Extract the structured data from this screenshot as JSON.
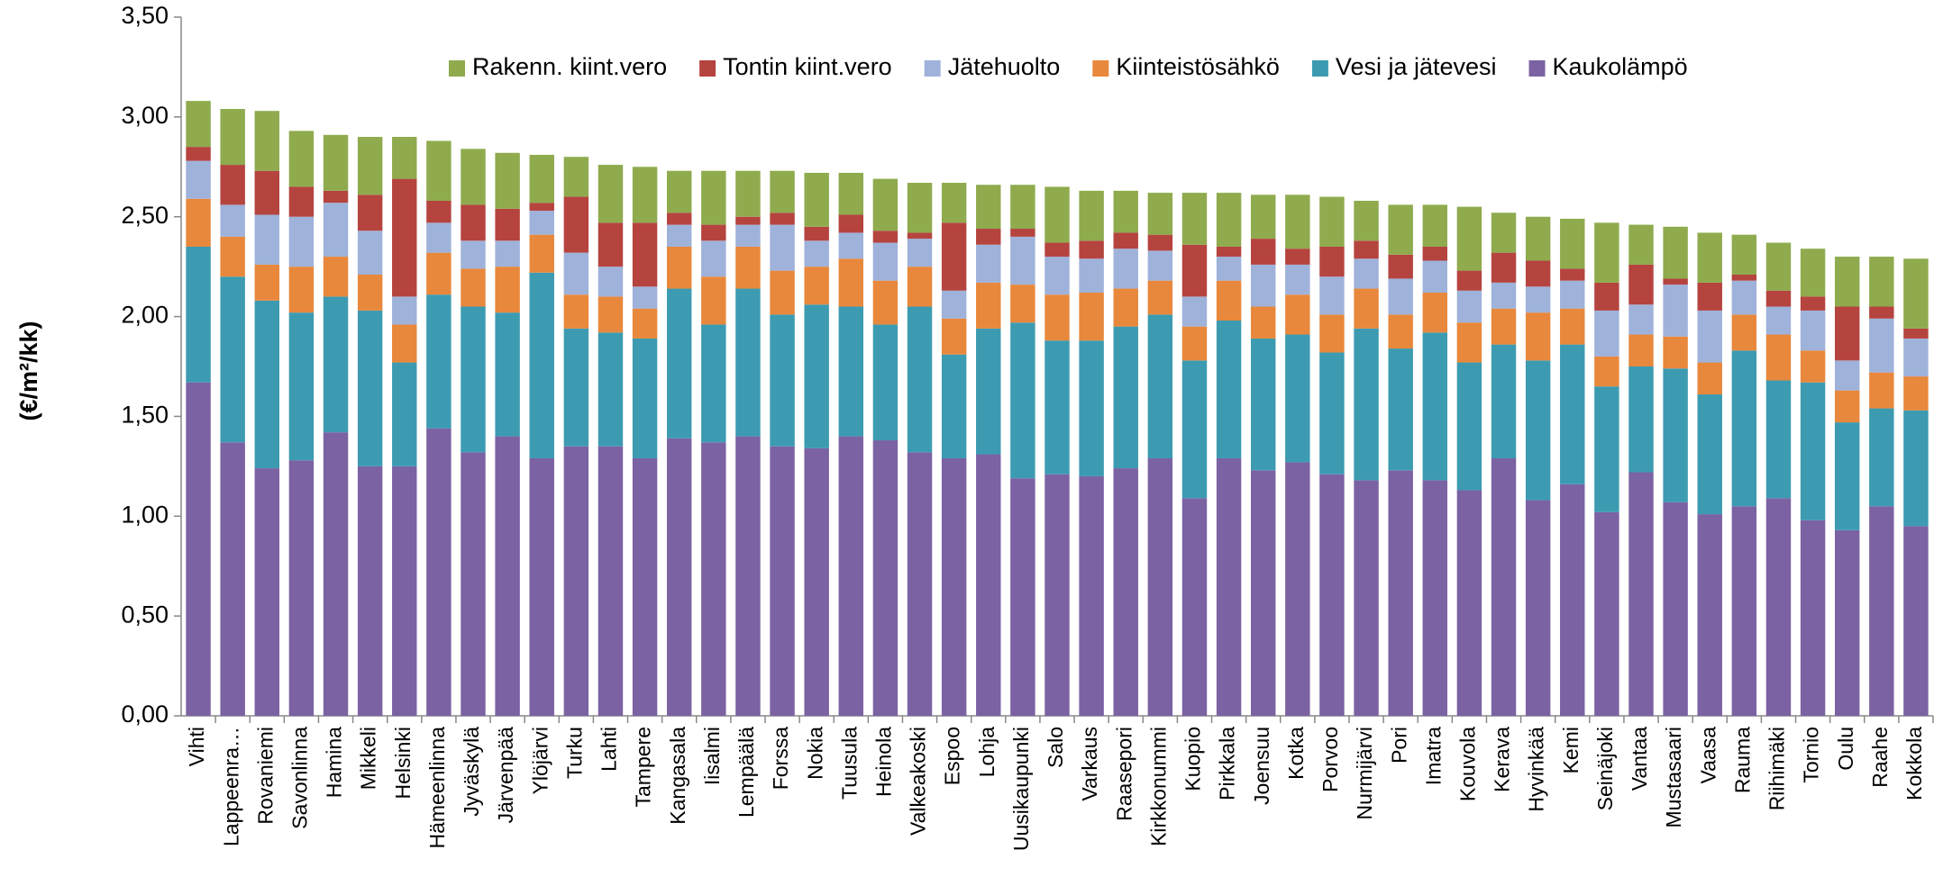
{
  "chart_data": {
    "type": "stacked_bar",
    "y_label": "(€/m²/kk)",
    "categories": [
      "Vihti",
      "Lappeenra…",
      "Rovaniemi",
      "Savonlinna",
      "Hamina",
      "Mikkeli",
      "Helsinki",
      "Hämeenlinna",
      "Jyväskylä",
      "Järvenpää",
      "Ylöjärvi",
      "Turku",
      "Lahti",
      "Tampere",
      "Kangasala",
      "Iisalmi",
      "Lempäälä",
      "Forssa",
      "Nokia",
      "Tuusula",
      "Heinola",
      "Valkeakoski",
      "Espoo",
      "Lohja",
      "Uusikaupunki",
      "Salo",
      "Varkaus",
      "Raasepori",
      "Kirkkonummi",
      "Kuopio",
      "Pirkkala",
      "Joensuu",
      "Kotka",
      "Porvoo",
      "Nurmijärvi",
      "Pori",
      "Imatra",
      "Kouvola",
      "Kerava",
      "Hyvinkää",
      "Kemi",
      "Seinäjoki",
      "Vantaa",
      "Mustasaari",
      "Vaasa",
      "Rauma",
      "Riihimäki",
      "Tornio",
      "Oulu",
      "Raahe",
      "Kokkola"
    ],
    "series": [
      {
        "name": "Kaukolämpö",
        "color": "#7b62a3",
        "values": [
          1.67,
          1.37,
          1.24,
          1.28,
          1.42,
          1.25,
          1.25,
          1.44,
          1.32,
          1.4,
          1.29,
          1.35,
          1.35,
          1.29,
          1.39,
          1.37,
          1.4,
          1.35,
          1.34,
          1.4,
          1.38,
          1.32,
          1.29,
          1.31,
          1.19,
          1.21,
          1.2,
          1.24,
          1.29,
          1.09,
          1.29,
          1.23,
          1.27,
          1.21,
          1.18,
          1.23,
          1.18,
          1.13,
          1.29,
          1.08,
          1.16,
          1.02,
          1.22,
          1.07,
          1.01,
          1.05,
          1.09,
          0.98,
          0.93,
          1.05,
          0.95
        ]
      },
      {
        "name": "Vesi ja jätevesi",
        "color": "#3d9bb1",
        "values": [
          0.68,
          0.83,
          0.84,
          0.74,
          0.68,
          0.78,
          0.52,
          0.67,
          0.73,
          0.62,
          0.93,
          0.59,
          0.57,
          0.6,
          0.75,
          0.59,
          0.74,
          0.66,
          0.72,
          0.65,
          0.58,
          0.73,
          0.52,
          0.63,
          0.78,
          0.67,
          0.68,
          0.71,
          0.72,
          0.69,
          0.69,
          0.66,
          0.64,
          0.61,
          0.76,
          0.61,
          0.74,
          0.64,
          0.57,
          0.7,
          0.7,
          0.63,
          0.53,
          0.67,
          0.6,
          0.78,
          0.59,
          0.69,
          0.54,
          0.49,
          0.58
        ]
      },
      {
        "name": "Kiinteistösähkö",
        "color": "#e8883c",
        "values": [
          0.24,
          0.2,
          0.18,
          0.23,
          0.2,
          0.18,
          0.19,
          0.21,
          0.19,
          0.23,
          0.19,
          0.17,
          0.18,
          0.15,
          0.21,
          0.24,
          0.21,
          0.22,
          0.19,
          0.24,
          0.22,
          0.2,
          0.18,
          0.23,
          0.19,
          0.23,
          0.24,
          0.19,
          0.17,
          0.17,
          0.2,
          0.16,
          0.2,
          0.19,
          0.2,
          0.17,
          0.2,
          0.2,
          0.18,
          0.24,
          0.18,
          0.15,
          0.16,
          0.16,
          0.16,
          0.18,
          0.23,
          0.16,
          0.16,
          0.18,
          0.17
        ]
      },
      {
        "name": "Jätehuolto",
        "color": "#9fb2da",
        "values": [
          0.19,
          0.16,
          0.25,
          0.25,
          0.27,
          0.22,
          0.14,
          0.15,
          0.14,
          0.13,
          0.12,
          0.21,
          0.15,
          0.11,
          0.11,
          0.18,
          0.11,
          0.23,
          0.13,
          0.13,
          0.19,
          0.14,
          0.14,
          0.19,
          0.24,
          0.19,
          0.17,
          0.2,
          0.15,
          0.15,
          0.12,
          0.21,
          0.15,
          0.19,
          0.15,
          0.18,
          0.16,
          0.16,
          0.13,
          0.13,
          0.14,
          0.23,
          0.15,
          0.26,
          0.26,
          0.17,
          0.14,
          0.2,
          0.15,
          0.27,
          0.19
        ]
      },
      {
        "name": "Tontin kiint.vero",
        "color": "#b5443f",
        "values": [
          0.07,
          0.2,
          0.22,
          0.15,
          0.06,
          0.18,
          0.59,
          0.11,
          0.18,
          0.16,
          0.04,
          0.28,
          0.22,
          0.32,
          0.06,
          0.08,
          0.04,
          0.06,
          0.07,
          0.09,
          0.06,
          0.03,
          0.34,
          0.08,
          0.04,
          0.07,
          0.09,
          0.08,
          0.08,
          0.26,
          0.05,
          0.13,
          0.08,
          0.15,
          0.09,
          0.12,
          0.07,
          0.1,
          0.15,
          0.13,
          0.06,
          0.14,
          0.2,
          0.03,
          0.14,
          0.03,
          0.08,
          0.07,
          0.27,
          0.06,
          0.05
        ]
      },
      {
        "name": "Rakenn. kiint.vero",
        "color": "#8fab4e",
        "values": [
          0.23,
          0.28,
          0.3,
          0.28,
          0.28,
          0.29,
          0.21,
          0.3,
          0.28,
          0.28,
          0.24,
          0.2,
          0.29,
          0.28,
          0.21,
          0.27,
          0.23,
          0.21,
          0.27,
          0.21,
          0.26,
          0.25,
          0.2,
          0.22,
          0.22,
          0.28,
          0.25,
          0.21,
          0.21,
          0.26,
          0.27,
          0.22,
          0.27,
          0.25,
          0.2,
          0.25,
          0.21,
          0.32,
          0.2,
          0.22,
          0.25,
          0.3,
          0.2,
          0.26,
          0.25,
          0.2,
          0.24,
          0.24,
          0.25,
          0.25,
          0.35
        ]
      }
    ],
    "ylim": [
      0,
      3.5
    ],
    "yticks": [
      {
        "value": 0,
        "label": "0,00"
      },
      {
        "value": 0.5,
        "label": "0,50"
      },
      {
        "value": 1,
        "label": "1,00"
      },
      {
        "value": 1.5,
        "label": "1,50"
      },
      {
        "value": 2,
        "label": "2,00"
      },
      {
        "value": 2.5,
        "label": "2,50"
      },
      {
        "value": 3,
        "label": "3,00"
      },
      {
        "value": 3.5,
        "label": "3,50"
      }
    ],
    "grid": false,
    "legend": "top-right"
  }
}
